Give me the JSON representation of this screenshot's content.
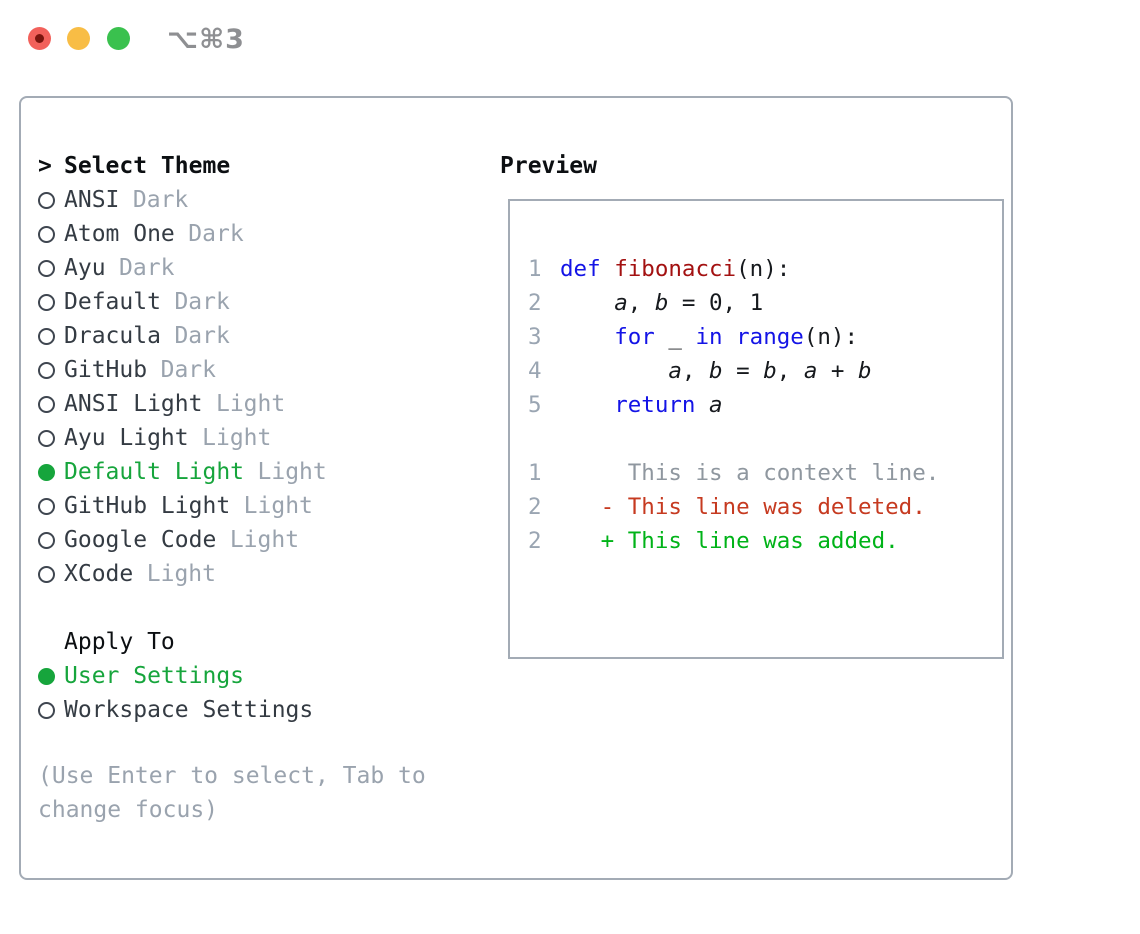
{
  "window": {
    "shortcut": "⌥⌘3",
    "controls": {
      "close": "close",
      "minimize": "minimize",
      "zoom": "zoom"
    }
  },
  "colors": {
    "accent_green": "#16a53c",
    "keyword_blue": "#1414e6",
    "function_red": "#a31111",
    "diff_deleted_red": "#c63a20",
    "diff_added_green": "#00b318",
    "muted_gray": "#9aa3ae",
    "panel_border": "#a3abb5",
    "close_button": "#f2615b",
    "minimize_button": "#f8bd45",
    "zoom_button": "#3ac14e"
  },
  "theme_picker": {
    "title_prefix": ">",
    "title": "Select Theme",
    "items": [
      {
        "label": "ANSI",
        "variant": "Dark",
        "selected": false
      },
      {
        "label": "Atom One",
        "variant": "Dark",
        "selected": false
      },
      {
        "label": "Ayu",
        "variant": "Dark",
        "selected": false
      },
      {
        "label": "Default",
        "variant": "Dark",
        "selected": false
      },
      {
        "label": "Dracula",
        "variant": "Dark",
        "selected": false
      },
      {
        "label": "GitHub",
        "variant": "Dark",
        "selected": false
      },
      {
        "label": "ANSI Light",
        "variant": "Light",
        "selected": false
      },
      {
        "label": "Ayu Light",
        "variant": "Light",
        "selected": false
      },
      {
        "label": "Default Light",
        "variant": "Light",
        "selected": true
      },
      {
        "label": "GitHub Light",
        "variant": "Light",
        "selected": false
      },
      {
        "label": "Google Code",
        "variant": "Light",
        "selected": false
      },
      {
        "label": "XCode",
        "variant": "Light",
        "selected": false
      }
    ],
    "apply_to": {
      "title": "Apply To",
      "options": [
        {
          "label": "User Settings",
          "selected": true
        },
        {
          "label": "Workspace Settings",
          "selected": false
        }
      ]
    },
    "hint": "(Use Enter to select, Tab to change focus)"
  },
  "preview": {
    "title": "Preview",
    "code_lines": [
      {
        "num": "1",
        "tokens": [
          {
            "text": "def ",
            "style": "keyword"
          },
          {
            "text": "fibonacci",
            "style": "function"
          },
          {
            "text": "(n):",
            "style": "plain"
          }
        ]
      },
      {
        "num": "2",
        "tokens": [
          {
            "text": "    ",
            "style": "plain"
          },
          {
            "text": "a",
            "style": "variable"
          },
          {
            "text": ", ",
            "style": "plain"
          },
          {
            "text": "b",
            "style": "variable"
          },
          {
            "text": " = 0, 1",
            "style": "plain"
          }
        ]
      },
      {
        "num": "3",
        "tokens": [
          {
            "text": "    ",
            "style": "plain"
          },
          {
            "text": "for",
            "style": "keyword"
          },
          {
            "text": " _ ",
            "style": "plain"
          },
          {
            "text": "in",
            "style": "keyword"
          },
          {
            "text": " ",
            "style": "plain"
          },
          {
            "text": "range",
            "style": "keyword"
          },
          {
            "text": "(n):",
            "style": "plain"
          }
        ]
      },
      {
        "num": "4",
        "tokens": [
          {
            "text": "        ",
            "style": "plain"
          },
          {
            "text": "a",
            "style": "variable"
          },
          {
            "text": ", ",
            "style": "plain"
          },
          {
            "text": "b",
            "style": "variable"
          },
          {
            "text": " = ",
            "style": "plain"
          },
          {
            "text": "b",
            "style": "variable"
          },
          {
            "text": ", ",
            "style": "plain"
          },
          {
            "text": "a",
            "style": "variable"
          },
          {
            "text": " + ",
            "style": "plain"
          },
          {
            "text": "b",
            "style": "variable"
          }
        ]
      },
      {
        "num": "5",
        "tokens": [
          {
            "text": "    ",
            "style": "plain"
          },
          {
            "text": "return",
            "style": "keyword"
          },
          {
            "text": " ",
            "style": "plain"
          },
          {
            "text": "a",
            "style": "variable"
          }
        ]
      }
    ],
    "diff_lines": [
      {
        "num": "1",
        "tokens": [
          {
            "text": "     This is a context line.",
            "style": "context"
          }
        ]
      },
      {
        "num": "2",
        "tokens": [
          {
            "text": "   ",
            "style": "plain"
          },
          {
            "text": "- This line was deleted.",
            "style": "deleted"
          }
        ]
      },
      {
        "num": "2",
        "tokens": [
          {
            "text": "   ",
            "style": "plain"
          },
          {
            "text": "+ This line was added.",
            "style": "added"
          }
        ]
      }
    ]
  }
}
